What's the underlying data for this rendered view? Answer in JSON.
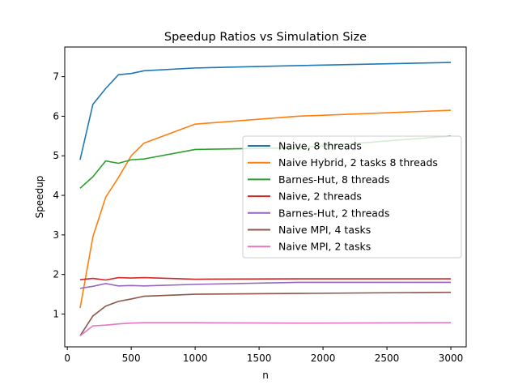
{
  "chart_data": {
    "type": "line",
    "title": "Speedup Ratios vs Simulation Size",
    "xlabel": "n",
    "ylabel": "Speedup",
    "xlim": [
      -20,
      3120
    ],
    "ylim": [
      0.17,
      7.75
    ],
    "xticks": [
      "0",
      "500",
      "1000",
      "1500",
      "2000",
      "2500",
      "3000"
    ],
    "yticks": [
      "1",
      "2",
      "3",
      "4",
      "5",
      "6",
      "7"
    ],
    "grid": false,
    "legend_position": "center-right",
    "series": [
      {
        "name": "Naive, 8 threads",
        "color": "#1f77b4",
        "x": [
          100,
          200,
          300,
          400,
          500,
          600,
          1000,
          1800,
          3000
        ],
        "y": [
          4.9,
          6.3,
          6.7,
          7.05,
          7.08,
          7.15,
          7.22,
          7.28,
          7.36
        ]
      },
      {
        "name": "Naive Hybrid, 2 tasks 8 threads",
        "color": "#ff7f0e",
        "x": [
          100,
          200,
          300,
          400,
          500,
          600,
          1000,
          1800,
          3000
        ],
        "y": [
          1.15,
          2.95,
          3.95,
          4.45,
          5.0,
          5.32,
          5.8,
          6.0,
          6.15
        ]
      },
      {
        "name": "Barnes-Hut, 8 threads",
        "color": "#2ca02c",
        "x": [
          100,
          200,
          300,
          400,
          500,
          600,
          1000,
          1800,
          3000
        ],
        "y": [
          4.18,
          4.47,
          4.87,
          4.81,
          4.9,
          4.92,
          5.16,
          5.2,
          5.5
        ]
      },
      {
        "name": "Naive, 2 threads",
        "color": "#d62728",
        "x": [
          100,
          200,
          300,
          400,
          500,
          600,
          1000,
          1800,
          3000
        ],
        "y": [
          1.87,
          1.9,
          1.86,
          1.92,
          1.91,
          1.92,
          1.88,
          1.89,
          1.89
        ]
      },
      {
        "name": "Barnes-Hut, 2 threads",
        "color": "#9467bd",
        "x": [
          100,
          200,
          300,
          400,
          500,
          600,
          1000,
          1800,
          3000
        ],
        "y": [
          1.65,
          1.7,
          1.77,
          1.71,
          1.72,
          1.71,
          1.75,
          1.8,
          1.8
        ]
      },
      {
        "name": "Naive MPI, 4 tasks",
        "color": "#8c564b",
        "x": [
          100,
          200,
          300,
          400,
          500,
          600,
          1000,
          1800,
          3000
        ],
        "y": [
          0.45,
          0.95,
          1.2,
          1.32,
          1.38,
          1.45,
          1.5,
          1.52,
          1.55
        ]
      },
      {
        "name": "Naive MPI, 2 tasks",
        "color": "#e377c2",
        "x": [
          100,
          200,
          300,
          400,
          500,
          600,
          1000,
          1800,
          3000
        ],
        "y": [
          0.45,
          0.7,
          0.72,
          0.75,
          0.77,
          0.78,
          0.78,
          0.77,
          0.78
        ]
      }
    ]
  }
}
